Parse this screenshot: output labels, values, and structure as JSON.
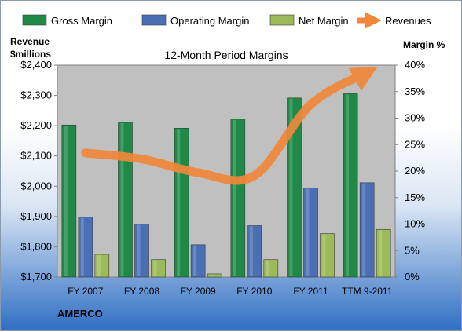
{
  "chart_data": {
    "type": "bar",
    "title": "12-Month Period Margins",
    "categories": [
      "FY 2007",
      "FY 2008",
      "FY 2009",
      "FY 2010",
      "FY 2011",
      "TTM 9-2011"
    ],
    "left_axis": {
      "label_line1": "Revenue",
      "label_line2": "$millions",
      "range": [
        1700,
        2400
      ],
      "ticks": [
        1700,
        1800,
        1900,
        2000,
        2100,
        2200,
        2300,
        2400
      ],
      "tick_labels": [
        "$1,700",
        "$1,800",
        "$1,900",
        "$2,000",
        "$2,100",
        "$2,200",
        "$2,300",
        "$2,400"
      ]
    },
    "right_axis": {
      "label": "Margin %",
      "range": [
        0,
        40
      ],
      "ticks": [
        0,
        5,
        10,
        15,
        20,
        25,
        30,
        35,
        40
      ],
      "tick_labels": [
        "0%",
        "5%",
        "10%",
        "15%",
        "20%",
        "25%",
        "30%",
        "35%",
        "40%"
      ]
    },
    "series": [
      {
        "name": "Gross Margin",
        "type": "bar",
        "axis": "right",
        "color": "#1f8a47",
        "values": [
          28.7,
          29.2,
          28.1,
          29.8,
          33.8,
          34.6
        ]
      },
      {
        "name": "Operating Margin",
        "type": "bar",
        "axis": "right",
        "color": "#4a6fb5",
        "values": [
          11.3,
          10.0,
          6.1,
          9.7,
          16.8,
          17.8
        ]
      },
      {
        "name": "Net Margin",
        "type": "bar",
        "axis": "right",
        "color": "#9bbb59",
        "values": [
          4.3,
          3.3,
          0.6,
          3.3,
          8.2,
          9.0
        ]
      },
      {
        "name": "Revenues",
        "type": "line",
        "axis": "left",
        "color": "#f0873a",
        "values": [
          2110,
          2090,
          2045,
          2035,
          2270,
          2375
        ]
      }
    ],
    "legend_position": "top",
    "grid": false,
    "footer": "AMERCO",
    "colors": {
      "plot_bg": "#c0c0c0",
      "plot_border": "#808080"
    }
  }
}
